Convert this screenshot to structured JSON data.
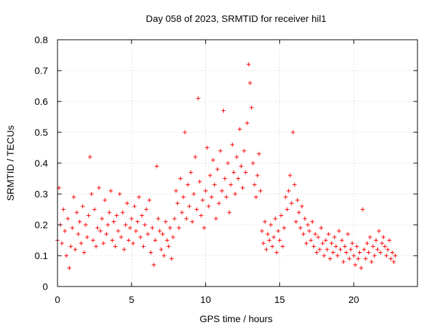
{
  "chart_data": {
    "type": "scatter",
    "title": "Day 058 of 2023, SRMTID for receiver hil1",
    "xlabel": "GPS time / hours",
    "ylabel": "SRMTID / TECUs",
    "xlim": [
      0,
      24.3
    ],
    "ylim": [
      0,
      0.8
    ],
    "x_ticks": [
      0,
      5,
      10,
      15,
      20
    ],
    "x_tick_labels": [
      "0",
      "5",
      "10",
      "15",
      "20"
    ],
    "y_ticks": [
      0,
      0.1,
      0.2,
      0.3,
      0.4,
      0.5,
      0.6,
      0.7,
      0.8
    ],
    "y_tick_labels": [
      "0",
      "0.1",
      "0.2",
      "0.3",
      "0.4",
      "0.5",
      "0.6",
      "0.7",
      "0.8"
    ],
    "grid": true,
    "marker": "+",
    "series": [
      {
        "name": "SRMTID",
        "color": "#ff0000",
        "x": [
          0.0,
          0.1,
          0.2,
          0.3,
          0.4,
          0.5,
          0.6,
          0.7,
          0.8,
          0.9,
          1.0,
          1.1,
          1.2,
          1.3,
          1.4,
          1.5,
          1.6,
          1.7,
          1.8,
          1.9,
          2.0,
          2.1,
          2.2,
          2.3,
          2.4,
          2.5,
          2.6,
          2.7,
          2.8,
          2.9,
          3.0,
          3.1,
          3.2,
          3.3,
          3.4,
          3.5,
          3.6,
          3.7,
          3.8,
          3.9,
          4.0,
          4.1,
          4.2,
          4.3,
          4.4,
          4.5,
          4.6,
          4.7,
          4.8,
          4.9,
          5.0,
          5.1,
          5.2,
          5.3,
          5.4,
          5.5,
          5.6,
          5.7,
          5.8,
          5.9,
          6.0,
          6.1,
          6.2,
          6.3,
          6.4,
          6.5,
          6.6,
          6.7,
          6.8,
          6.9,
          7.0,
          7.1,
          7.2,
          7.3,
          7.4,
          7.5,
          7.6,
          7.7,
          7.8,
          7.9,
          8.0,
          8.1,
          8.2,
          8.3,
          8.4,
          8.5,
          8.6,
          8.7,
          8.8,
          8.9,
          9.0,
          9.1,
          9.2,
          9.3,
          9.4,
          9.5,
          9.6,
          9.7,
          9.8,
          9.9,
          10.0,
          10.1,
          10.2,
          10.3,
          10.4,
          10.5,
          10.6,
          10.7,
          10.8,
          10.9,
          11.0,
          11.1,
          11.2,
          11.3,
          11.4,
          11.5,
          11.6,
          11.7,
          11.8,
          11.9,
          12.0,
          12.1,
          12.2,
          12.3,
          12.4,
          12.5,
          12.6,
          12.7,
          12.8,
          12.9,
          13.0,
          13.1,
          13.2,
          13.3,
          13.4,
          13.5,
          13.6,
          13.7,
          13.8,
          13.9,
          14.0,
          14.1,
          14.2,
          14.3,
          14.4,
          14.5,
          14.6,
          14.7,
          14.8,
          14.9,
          15.0,
          15.1,
          15.2,
          15.3,
          15.4,
          15.5,
          15.6,
          15.7,
          15.8,
          15.9,
          16.0,
          16.1,
          16.2,
          16.3,
          16.4,
          16.5,
          16.6,
          16.7,
          16.8,
          16.9,
          17.0,
          17.1,
          17.2,
          17.3,
          17.4,
          17.5,
          17.6,
          17.7,
          17.8,
          17.9,
          18.0,
          18.1,
          18.2,
          18.3,
          18.4,
          18.5,
          18.6,
          18.7,
          18.8,
          18.9,
          19.0,
          19.1,
          19.2,
          19.3,
          19.4,
          19.5,
          19.6,
          19.7,
          19.8,
          19.9,
          20.0,
          20.1,
          20.2,
          20.3,
          20.4,
          20.5,
          20.6,
          20.7,
          20.8,
          20.9,
          21.0,
          21.1,
          21.2,
          21.3,
          21.4,
          21.5,
          21.6,
          21.7,
          21.8,
          21.9,
          22.0,
          22.1,
          22.2,
          22.3,
          22.4,
          22.5,
          22.6,
          22.7,
          22.8
        ],
        "y": [
          0.15,
          0.32,
          0.2,
          0.14,
          0.25,
          0.18,
          0.1,
          0.22,
          0.06,
          0.13,
          0.19,
          0.29,
          0.12,
          0.24,
          0.17,
          0.21,
          0.14,
          0.26,
          0.11,
          0.2,
          0.16,
          0.23,
          0.42,
          0.3,
          0.15,
          0.25,
          0.13,
          0.19,
          0.32,
          0.18,
          0.22,
          0.14,
          0.28,
          0.17,
          0.2,
          0.24,
          0.31,
          0.15,
          0.21,
          0.13,
          0.23,
          0.18,
          0.3,
          0.16,
          0.24,
          0.12,
          0.2,
          0.27,
          0.15,
          0.19,
          0.22,
          0.14,
          0.26,
          0.18,
          0.21,
          0.29,
          0.16,
          0.23,
          0.13,
          0.2,
          0.25,
          0.17,
          0.28,
          0.11,
          0.19,
          0.07,
          0.15,
          0.39,
          0.22,
          0.18,
          0.12,
          0.17,
          0.1,
          0.21,
          0.15,
          0.13,
          0.19,
          0.09,
          0.16,
          0.22,
          0.31,
          0.27,
          0.19,
          0.35,
          0.24,
          0.29,
          0.5,
          0.22,
          0.33,
          0.26,
          0.37,
          0.21,
          0.3,
          0.42,
          0.25,
          0.61,
          0.34,
          0.23,
          0.28,
          0.19,
          0.31,
          0.45,
          0.26,
          0.36,
          0.29,
          0.41,
          0.33,
          0.22,
          0.38,
          0.27,
          0.44,
          0.31,
          0.57,
          0.35,
          0.29,
          0.4,
          0.24,
          0.33,
          0.46,
          0.37,
          0.3,
          0.42,
          0.35,
          0.51,
          0.39,
          0.32,
          0.44,
          0.37,
          0.53,
          0.72,
          0.66,
          0.58,
          0.4,
          0.33,
          0.29,
          0.36,
          0.43,
          0.31,
          0.18,
          0.14,
          0.21,
          0.12,
          0.17,
          0.15,
          0.2,
          0.13,
          0.16,
          0.22,
          0.11,
          0.18,
          0.15,
          0.23,
          0.13,
          0.19,
          0.29,
          0.25,
          0.31,
          0.36,
          0.27,
          0.5,
          0.33,
          0.21,
          0.28,
          0.24,
          0.19,
          0.26,
          0.17,
          0.22,
          0.14,
          0.2,
          0.18,
          0.15,
          0.21,
          0.13,
          0.17,
          0.11,
          0.16,
          0.12,
          0.19,
          0.14,
          0.1,
          0.15,
          0.12,
          0.17,
          0.09,
          0.14,
          0.11,
          0.16,
          0.13,
          0.1,
          0.18,
          0.12,
          0.15,
          0.08,
          0.13,
          0.11,
          0.17,
          0.09,
          0.12,
          0.14,
          0.1,
          0.07,
          0.13,
          0.09,
          0.11,
          0.06,
          0.25,
          0.12,
          0.09,
          0.14,
          0.11,
          0.16,
          0.08,
          0.13,
          0.1,
          0.15,
          0.12,
          0.18,
          0.11,
          0.14,
          0.16,
          0.13,
          0.1,
          0.12,
          0.15,
          0.09,
          0.11,
          0.08,
          0.1
        ]
      }
    ]
  }
}
